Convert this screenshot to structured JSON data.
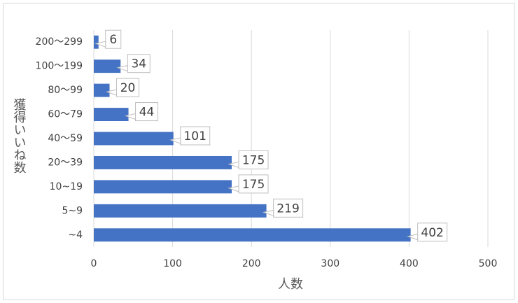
{
  "chart_data": {
    "type": "bar",
    "orientation": "horizontal",
    "categories": [
      "200〜299",
      "100〜199",
      "80〜99",
      "60〜79",
      "40〜59",
      "20〜39",
      "10~19",
      "5~9",
      "~4"
    ],
    "values": [
      6,
      34,
      20,
      44,
      101,
      175,
      175,
      219,
      402
    ],
    "color": "#4472c4",
    "xlabel": "人数",
    "ylabel": "獲得いいね数",
    "xlim": [
      0,
      500
    ],
    "xticks": [
      0,
      100,
      200,
      300,
      400,
      500
    ],
    "grid": true
  }
}
